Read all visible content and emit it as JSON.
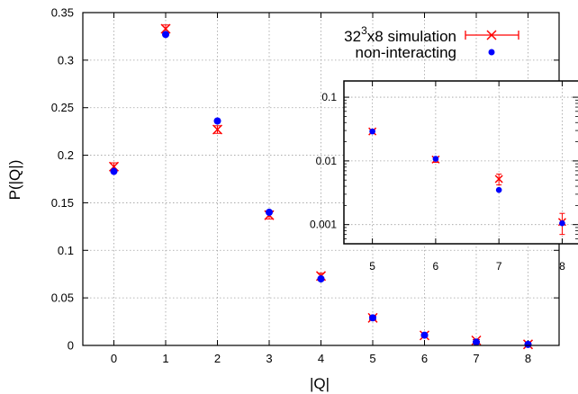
{
  "chart_data": [
    {
      "type": "scatter",
      "xlabel": "|Q|",
      "ylabel": "P(|Q|)",
      "xlim": [
        -0.6,
        8.6
      ],
      "ylim": [
        0,
        0.35
      ],
      "xticks": [
        "0",
        "1",
        "2",
        "3",
        "4",
        "5",
        "6",
        "7",
        "8"
      ],
      "yticks": [
        "0",
        "0.05",
        "0.1",
        "0.15",
        "0.2",
        "0.25",
        "0.3",
        "0.35"
      ],
      "grid": true,
      "legend_position": "top-right",
      "series": [
        {
          "name": "32³x8 simulation",
          "marker": "x",
          "color": "#ff0000",
          "x": [
            0,
            1,
            2,
            3,
            4,
            5,
            6,
            7,
            8
          ],
          "y": [
            0.188,
            0.333,
            0.227,
            0.137,
            0.073,
            0.029,
            0.0105,
            0.0052,
            0.0011
          ],
          "yerr": [
            0.004,
            0.004,
            0.004,
            0.004,
            0.003,
            0.002,
            0.001,
            0.001,
            0.0004
          ]
        },
        {
          "name": "non-interacting",
          "marker": "circle",
          "color": "#0000ff",
          "x": [
            0,
            1,
            2,
            3,
            4,
            5,
            6,
            7,
            8
          ],
          "y": [
            0.183,
            0.327,
            0.236,
            0.14,
            0.07,
            0.029,
            0.0108,
            0.0035,
            0.00105
          ]
        }
      ]
    },
    {
      "type": "scatter",
      "inset": true,
      "yscale": "log",
      "xlim": [
        4.55,
        8.25
      ],
      "ylim": [
        0.0005,
        0.18
      ],
      "xticks": [
        "5",
        "6",
        "7",
        "8"
      ],
      "yticks": [
        "0.001",
        "0.01",
        "0.1"
      ],
      "grid": true,
      "series": [
        {
          "marker": "x",
          "color": "#ff0000",
          "x": [
            5,
            6,
            7,
            8
          ],
          "y": [
            0.029,
            0.0105,
            0.0052,
            0.0011
          ],
          "yerr": [
            0.002,
            0.001,
            0.001,
            0.0004
          ]
        },
        {
          "marker": "circle",
          "color": "#0000ff",
          "x": [
            5,
            6,
            7,
            8
          ],
          "y": [
            0.029,
            0.0108,
            0.0035,
            0.00105
          ]
        }
      ]
    }
  ],
  "legend": {
    "entry1_base": "32",
    "entry1_sup": "3",
    "entry1_rest": "x8 simulation",
    "entry2": "non-interacting"
  }
}
